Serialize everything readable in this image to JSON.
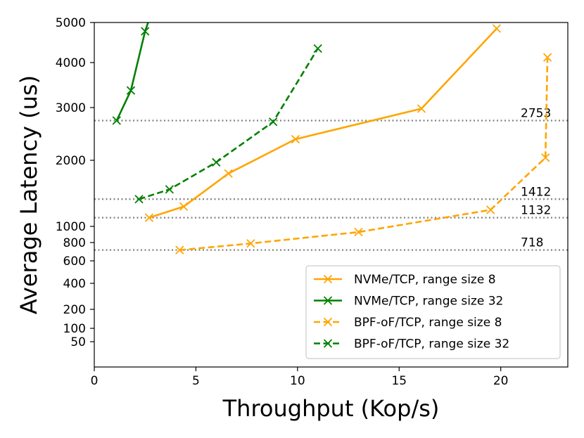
{
  "chart_data": {
    "type": "line",
    "title": "",
    "xlabel": "Throughput (Kop/s)",
    "ylabel": "Average Latency (us)",
    "xlim": [
      0,
      23.3
    ],
    "ylim": [
      0,
      5000
    ],
    "y_scale": "piecewise",
    "x_ticks": [
      0,
      5,
      10,
      15,
      20
    ],
    "y_ticks": [
      50,
      100,
      200,
      400,
      600,
      800,
      1000,
      2000,
      3000,
      4000,
      5000
    ],
    "grid": false,
    "legend_position": "lower-right",
    "reference_lines": [
      {
        "value": 2753,
        "label": "2753"
      },
      {
        "value": 1412,
        "label": "1412"
      },
      {
        "value": 1132,
        "label": "1132"
      },
      {
        "value": 718,
        "label": "718"
      }
    ],
    "series": [
      {
        "name": "NVMe/TCP, range size 8",
        "color": "#FFA500",
        "dash": "solid",
        "x": [
          2.7,
          4.4,
          6.6,
          9.9,
          16.1,
          19.8
        ],
        "y": [
          1132,
          1300,
          1800,
          2400,
          2980,
          4850
        ]
      },
      {
        "name": "NVMe/TCP, range size 32",
        "color": "#008000",
        "dash": "solid",
        "x": [
          1.1,
          1.8,
          2.5,
          2.65
        ],
        "y": [
          2753,
          3380,
          4780,
          5000
        ]
      },
      {
        "name": "BPF-oF/TCP, range size 8",
        "color": "#FFA500",
        "dash": "dashed",
        "x": [
          4.2,
          7.7,
          13.0,
          19.5,
          22.2,
          22.3
        ],
        "y": [
          718,
          790,
          930,
          1250,
          2050,
          4130
        ]
      },
      {
        "name": "BPF-oF/TCP, range size 32",
        "color": "#008000",
        "dash": "dashed",
        "x": [
          2.2,
          3.7,
          6.0,
          8.8,
          11.0
        ],
        "y": [
          1412,
          1560,
          1970,
          2730,
          4350
        ]
      }
    ]
  }
}
